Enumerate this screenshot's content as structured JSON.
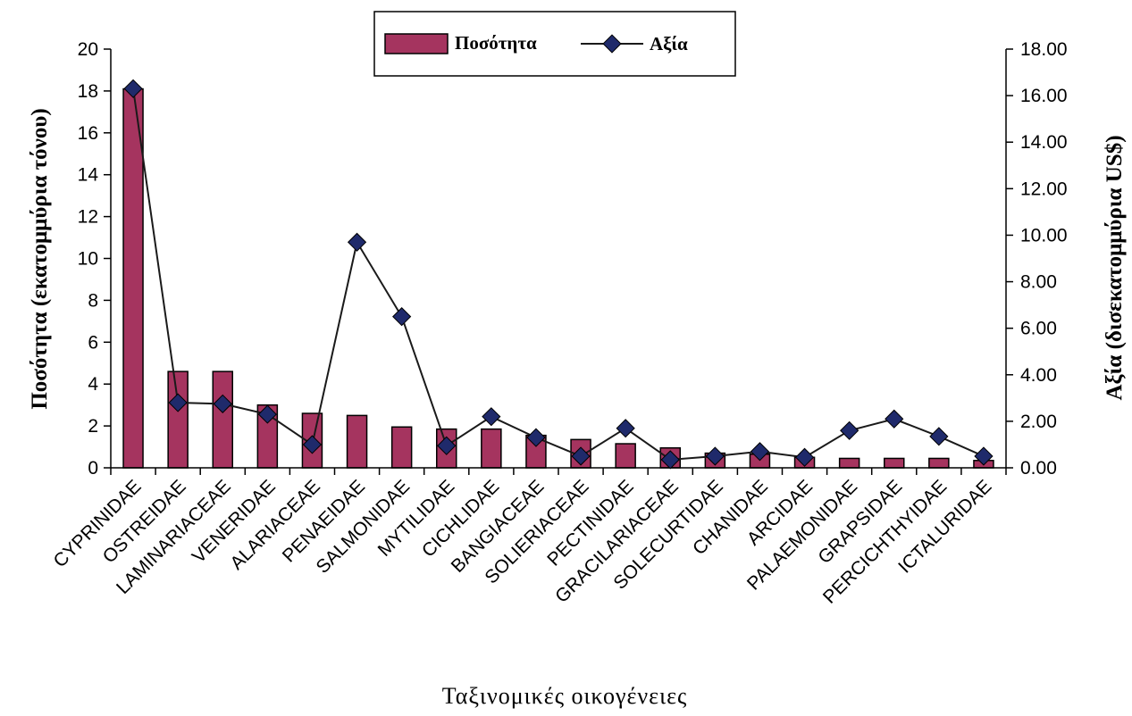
{
  "chart_data": {
    "type": "bar+line",
    "categories": [
      "CYPRINIDAE",
      "OSTREIDAE",
      "LAMINARIACEAE",
      "VENERIDAE",
      "ALARIACEAE",
      "PENAEIDAE",
      "SALMONIDAE",
      "MYTILIDAE",
      "CICHLIDAE",
      "BANGIACEAE",
      "SOLIERIACEAE",
      "PECTINIDAE",
      "GRACILARIACEAE",
      "SOLECURTIDAE",
      "CHANIDAE",
      "ARCIDAE",
      "PALAEMONIDAE",
      "GRAPSIDAE",
      "PERCICHTHYIDAE",
      "ICTALURIDAE"
    ],
    "series": [
      {
        "name": "Ποσότητα",
        "type": "bar",
        "axis": "left",
        "values": [
          18.1,
          4.6,
          4.6,
          3.0,
          2.6,
          2.5,
          1.95,
          1.85,
          1.85,
          1.55,
          1.35,
          1.15,
          0.95,
          0.7,
          0.65,
          0.5,
          0.45,
          0.45,
          0.45,
          0.35
        ]
      },
      {
        "name": "Αξία",
        "type": "line",
        "axis": "right",
        "values": [
          16.3,
          2.8,
          2.75,
          2.3,
          1.0,
          9.7,
          6.5,
          0.95,
          2.2,
          1.3,
          0.5,
          1.7,
          0.35,
          0.5,
          0.7,
          0.45,
          1.6,
          2.1,
          1.35,
          0.5
        ]
      }
    ],
    "xlabel": "Ταξινομικές οικογένειες",
    "ylabel": "Ποσότητα (εκατομμύρια τόνου)",
    "y2label": "Αξία (δισεκατομμύρια  US$)",
    "ylim": [
      0,
      20
    ],
    "y2lim": [
      0,
      18
    ],
    "yticks": [
      "0",
      "2",
      "4",
      "6",
      "8",
      "10",
      "12",
      "14",
      "16",
      "18",
      "20"
    ],
    "y2ticks": [
      "0.00",
      "2.00",
      "4.00",
      "6.00",
      "8.00",
      "10.00",
      "12.00",
      "14.00",
      "16.00",
      "18.00"
    ],
    "legend_position": "top-center",
    "grid": false,
    "colors": {
      "bar": "#a5345f",
      "line": "#1a1a1a",
      "marker": "#1f2a6b"
    }
  }
}
